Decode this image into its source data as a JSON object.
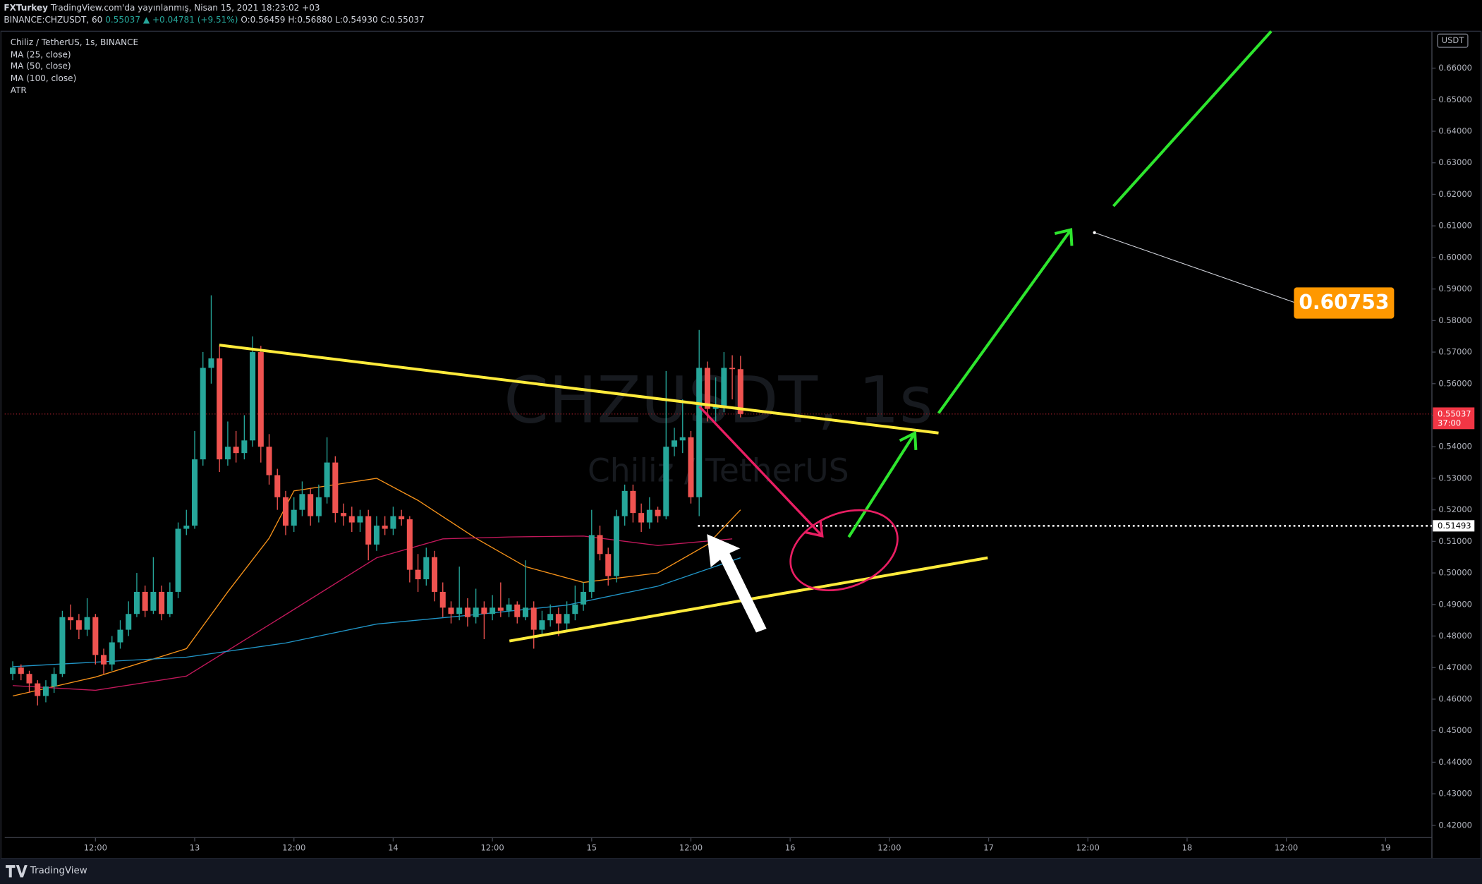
{
  "header": {
    "publisher": "FXTurkey",
    "published": "TradingView.com'da yayınlanmış, Nisan 15, 2021 18:23:02 +03",
    "symbol": "BINANCE:CHZUSDT, 60",
    "last": "0.55037",
    "change": "▲ +0.04781 (+9.51%)",
    "ohlc": [
      "O:0.56459",
      "H:0.56880",
      "L:0.54930",
      "C:0.55037"
    ]
  },
  "footer": "TradingView",
  "chart_data": {
    "type": "candlestick",
    "title": "Chiliz / TetherUS, 1s, BINANCE",
    "watermark": [
      "CHZUSDT, 1s",
      "Chiliz / TetherUS"
    ],
    "atr_label": "ATR",
    "currency": "USDT",
    "up_color": "#26a69a",
    "down_color": "#ef5350",
    "x": [
      -22,
      -21,
      -20,
      -19,
      -18,
      -17,
      -16,
      -15,
      -14,
      -13,
      -12,
      -11,
      -10,
      -9,
      -8,
      -7,
      -6,
      -5,
      -4,
      -3,
      -2,
      -1,
      0,
      1,
      2,
      3,
      4,
      5,
      6,
      7,
      8,
      9,
      10,
      11,
      12,
      13,
      14,
      15,
      16,
      17,
      18,
      19,
      20,
      21,
      22,
      23,
      24,
      25,
      26,
      27,
      28,
      29,
      30,
      31,
      32,
      33,
      34,
      35,
      36,
      37,
      38,
      39,
      40,
      41,
      42,
      43,
      44,
      45,
      46,
      47,
      48,
      49,
      50,
      51,
      52,
      53,
      54,
      55,
      56,
      57,
      58,
      59,
      60,
      61,
      62,
      63,
      64,
      65,
      66
    ],
    "candles": [
      [
        0.468,
        0.472,
        0.466,
        0.47
      ],
      [
        0.47,
        0.471,
        0.466,
        0.468
      ],
      [
        0.468,
        0.469,
        0.462,
        0.465
      ],
      [
        0.465,
        0.466,
        0.458,
        0.461
      ],
      [
        0.461,
        0.466,
        0.459,
        0.464
      ],
      [
        0.464,
        0.47,
        0.462,
        0.468
      ],
      [
        0.468,
        0.488,
        0.467,
        0.486
      ],
      [
        0.486,
        0.49,
        0.482,
        0.485
      ],
      [
        0.485,
        0.487,
        0.479,
        0.482
      ],
      [
        0.482,
        0.492,
        0.48,
        0.486
      ],
      [
        0.486,
        0.487,
        0.471,
        0.474
      ],
      [
        0.474,
        0.476,
        0.468,
        0.471
      ],
      [
        0.471,
        0.48,
        0.469,
        0.478
      ],
      [
        0.478,
        0.485,
        0.476,
        0.482
      ],
      [
        0.482,
        0.491,
        0.48,
        0.487
      ],
      [
        0.487,
        0.5,
        0.486,
        0.494
      ],
      [
        0.494,
        0.496,
        0.486,
        0.488
      ],
      [
        0.488,
        0.505,
        0.487,
        0.494
      ],
      [
        0.494,
        0.496,
        0.485,
        0.487
      ],
      [
        0.487,
        0.497,
        0.486,
        0.494
      ],
      [
        0.494,
        0.516,
        0.492,
        0.514
      ],
      [
        0.514,
        0.52,
        0.512,
        0.515
      ],
      [
        0.515,
        0.545,
        0.514,
        0.536
      ],
      [
        0.536,
        0.57,
        0.534,
        0.565
      ],
      [
        0.565,
        0.588,
        0.56,
        0.568
      ],
      [
        0.568,
        0.572,
        0.532,
        0.536
      ],
      [
        0.536,
        0.548,
        0.534,
        0.54
      ],
      [
        0.54,
        0.545,
        0.535,
        0.538
      ],
      [
        0.538,
        0.55,
        0.536,
        0.542
      ],
      [
        0.542,
        0.575,
        0.54,
        0.57
      ],
      [
        0.57,
        0.572,
        0.535,
        0.54
      ],
      [
        0.54,
        0.544,
        0.528,
        0.531
      ],
      [
        0.531,
        0.533,
        0.52,
        0.524
      ],
      [
        0.524,
        0.526,
        0.512,
        0.515
      ],
      [
        0.515,
        0.524,
        0.513,
        0.52
      ],
      [
        0.52,
        0.529,
        0.518,
        0.525
      ],
      [
        0.525,
        0.527,
        0.515,
        0.518
      ],
      [
        0.518,
        0.528,
        0.516,
        0.524
      ],
      [
        0.524,
        0.543,
        0.522,
        0.535
      ],
      [
        0.535,
        0.537,
        0.516,
        0.519
      ],
      [
        0.519,
        0.522,
        0.515,
        0.518
      ],
      [
        0.518,
        0.521,
        0.513,
        0.516
      ],
      [
        0.516,
        0.52,
        0.513,
        0.518
      ],
      [
        0.518,
        0.52,
        0.504,
        0.509
      ],
      [
        0.509,
        0.518,
        0.507,
        0.515
      ],
      [
        0.515,
        0.518,
        0.512,
        0.514
      ],
      [
        0.514,
        0.521,
        0.512,
        0.518
      ],
      [
        0.518,
        0.52,
        0.515,
        0.517
      ],
      [
        0.517,
        0.518,
        0.497,
        0.501
      ],
      [
        0.501,
        0.506,
        0.494,
        0.498
      ],
      [
        0.498,
        0.508,
        0.496,
        0.505
      ],
      [
        0.505,
        0.507,
        0.491,
        0.494
      ],
      [
        0.494,
        0.497,
        0.486,
        0.489
      ],
      [
        0.489,
        0.491,
        0.484,
        0.487
      ],
      [
        0.487,
        0.502,
        0.485,
        0.489
      ],
      [
        0.489,
        0.492,
        0.483,
        0.486
      ],
      [
        0.486,
        0.495,
        0.484,
        0.489
      ],
      [
        0.489,
        0.491,
        0.479,
        0.487
      ],
      [
        0.487,
        0.493,
        0.485,
        0.489
      ],
      [
        0.489,
        0.497,
        0.486,
        0.488
      ],
      [
        0.488,
        0.492,
        0.486,
        0.49
      ],
      [
        0.49,
        0.491,
        0.484,
        0.486
      ],
      [
        0.486,
        0.504,
        0.485,
        0.489
      ],
      [
        0.489,
        0.491,
        0.476,
        0.482
      ],
      [
        0.482,
        0.488,
        0.48,
        0.485
      ],
      [
        0.485,
        0.49,
        0.483,
        0.487
      ],
      [
        0.487,
        0.489,
        0.48,
        0.484
      ],
      [
        0.484,
        0.491,
        0.482,
        0.487
      ],
      [
        0.487,
        0.496,
        0.485,
        0.49
      ],
      [
        0.49,
        0.497,
        0.488,
        0.494
      ],
      [
        0.494,
        0.52,
        0.492,
        0.512
      ],
      [
        0.512,
        0.515,
        0.504,
        0.506
      ],
      [
        0.506,
        0.508,
        0.496,
        0.499
      ],
      [
        0.499,
        0.52,
        0.497,
        0.518
      ],
      [
        0.518,
        0.528,
        0.515,
        0.526
      ],
      [
        0.526,
        0.528,
        0.516,
        0.519
      ],
      [
        0.519,
        0.522,
        0.513,
        0.516
      ],
      [
        0.516,
        0.524,
        0.514,
        0.52
      ],
      [
        0.52,
        0.521,
        0.516,
        0.518
      ],
      [
        0.518,
        0.564,
        0.517,
        0.54
      ],
      [
        0.54,
        0.546,
        0.537,
        0.542
      ],
      [
        0.542,
        0.555,
        0.538,
        0.543
      ],
      [
        0.543,
        0.545,
        0.522,
        0.524
      ],
      [
        0.524,
        0.577,
        0.518,
        0.565
      ],
      [
        0.565,
        0.567,
        0.548,
        0.552
      ],
      [
        0.552,
        0.562,
        0.548,
        0.553
      ],
      [
        0.553,
        0.57,
        0.551,
        0.565
      ],
      [
        0.565,
        0.569,
        0.555,
        0.56459
      ],
      [
        0.56459,
        0.5688,
        0.5493,
        0.55037
      ]
    ],
    "series": [
      {
        "name": "MA (25, close)",
        "color": "#f7931a",
        "x": [
          -22,
          -12,
          -1,
          4,
          9,
          12,
          22,
          27,
          34,
          40,
          47,
          56,
          62,
          66
        ],
        "values": [
          0.461,
          0.467,
          0.476,
          0.494,
          0.511,
          0.526,
          0.53,
          0.523,
          0.511,
          0.502,
          0.497,
          0.5,
          0.509,
          0.52
        ]
      },
      {
        "name": "MA (50, close)",
        "color": "#c2185b",
        "x": [
          -22,
          -12,
          -1,
          11,
          22,
          30,
          38,
          47,
          56,
          65
        ],
        "values": [
          0.4643,
          0.4628,
          0.4673,
          0.4868,
          0.5048,
          0.5108,
          0.5114,
          0.5117,
          0.5087,
          0.5108
        ]
      },
      {
        "name": "MA (100, close)",
        "color": "#2196c8",
        "x": [
          -22,
          -1,
          11,
          22,
          34,
          45,
          56,
          66
        ],
        "values": [
          0.4703,
          0.4733,
          0.4778,
          0.4838,
          0.4868,
          0.4898,
          0.4958,
          0.5048
        ]
      }
    ],
    "last_price": 0.55037,
    "countdown": "37:00",
    "alert_level": 0.51493,
    "target": 0.60753,
    "xlim": [
      -22.97,
      149.6
    ],
    "xticks": [
      {
        "value": -12,
        "label": "12:00"
      },
      0,
      {
        "value": 0,
        "label": "13"
      },
      {
        "value": 12,
        "label": "12:00"
      },
      {
        "value": 24,
        "label": "14"
      },
      {
        "value": 36,
        "label": "12:00"
      },
      {
        "value": 48,
        "label": "15"
      },
      {
        "value": 60,
        "label": "12:00"
      },
      {
        "value": 72,
        "label": "16"
      },
      {
        "value": 84,
        "label": "12:00"
      },
      {
        "value": 96,
        "label": "17"
      },
      {
        "value": 108,
        "label": "12:00"
      },
      {
        "value": 120,
        "label": "18"
      },
      {
        "value": 132,
        "label": "12:00"
      },
      {
        "value": 144,
        "label": "19"
      }
    ],
    "ylim": [
      0.41611,
      0.67169
    ],
    "yticks": [
      {
        "value": 0.42,
        "label": "0.42000"
      },
      {
        "value": 0.43,
        "label": "0.43000"
      },
      {
        "value": 0.44,
        "label": "0.44000"
      },
      {
        "value": 0.45,
        "label": "0.45000"
      },
      {
        "value": 0.46,
        "label": "0.46000"
      },
      {
        "value": 0.47,
        "label": "0.47000"
      },
      {
        "value": 0.48,
        "label": "0.48000"
      },
      {
        "value": 0.49,
        "label": "0.49000"
      },
      {
        "value": 0.5,
        "label": "0.50000"
      },
      {
        "value": 0.51,
        "label": "0.51000"
      },
      {
        "value": 0.52,
        "label": "0.52000"
      },
      {
        "value": 0.53,
        "label": "0.53000"
      },
      {
        "value": 0.54,
        "label": "0.54000"
      },
      {
        "value": 0.55,
        "label": "0.55000"
      },
      {
        "value": 0.56,
        "label": "0.56000"
      },
      {
        "value": 0.57,
        "label": "0.57000"
      },
      {
        "value": 0.58,
        "label": "0.58000"
      },
      {
        "value": 0.59,
        "label": "0.59000"
      },
      {
        "value": 0.6,
        "label": "0.60000"
      },
      {
        "value": 0.61,
        "label": "0.61000"
      },
      {
        "value": 0.62,
        "label": "0.62000"
      },
      {
        "value": 0.63,
        "label": "0.63000"
      },
      {
        "value": 0.64,
        "label": "0.64000"
      },
      {
        "value": 0.65,
        "label": "0.65000"
      },
      {
        "value": 0.66,
        "label": "0.66000"
      }
    ],
    "grid": false
  }
}
